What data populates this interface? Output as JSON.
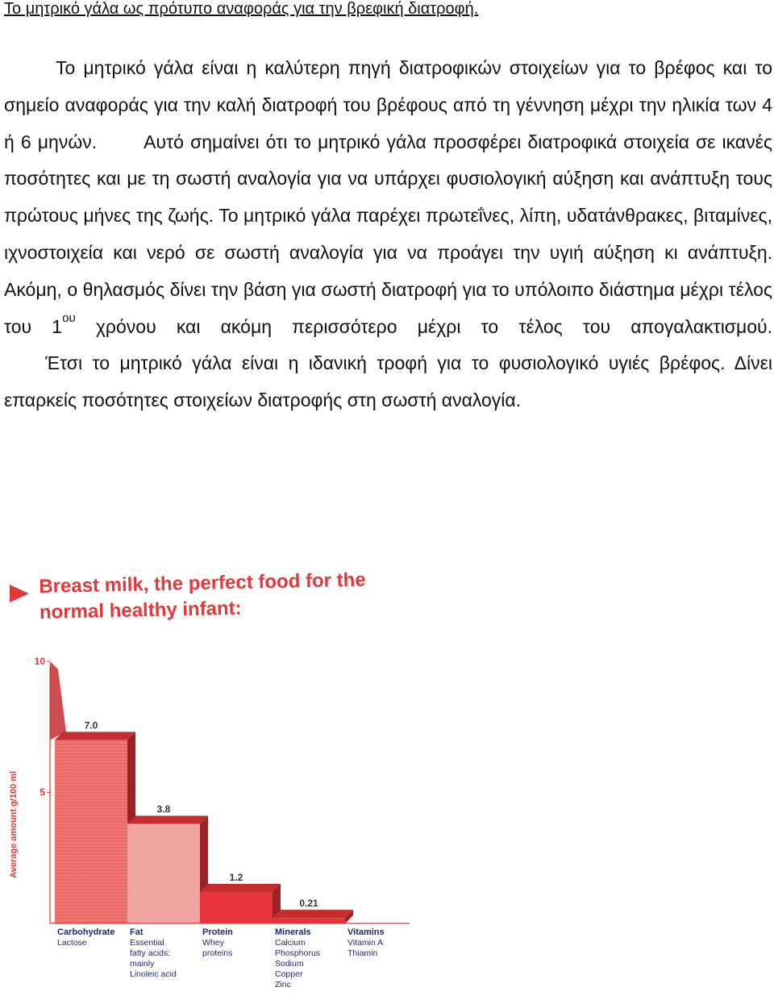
{
  "document": {
    "title": "Το μητρικό γάλα ως πρότυπο αναφοράς για την βρεφική διατροφή.",
    "p1": {
      "a": "Το μητρικό γάλα είναι η καλύτερη πηγή διατροφικών στοιχείων για το βρέφος και το σημείο αναφοράς για την καλή διατροφή του βρέφους από τη γέννηση μέχρι την ηλικία των 4 ή 6 μηνών.",
      "b": "Αυτό σημαίνει ότι το μητρικό γάλα προσφέρει διατροφικά στοιχεία σε ικανές ποσότητες και με τη σωστή αναλογία για να υπάρχει φυσιολογική αύξηση και ανάπτυξη τους πρώτους μήνες της ζωής. Το μητρικό γάλα παρέχει πρωτεΐνες, λίπη, υδατάνθρακες, βιταμίνες, ιχνοστοιχεία και νερό σε σωστή αναλογία για να προάγει την υγιή αύξηση κι ανάπτυξη. Ακόμη, ο θηλασμός δίνει την βάση για σωστή διατροφή για το υπόλοιπο διάστημα μέχρι τέλος του 1",
      "sup": "ου",
      "c": "χρόνου και ακόμη περισσότερο μέχρι το τέλος του απογαλακτισμού."
    },
    "p2": "Έτσι το μητρικό γάλα είναι η ιδανική τροφή για το φυσιολογικό υγιές βρέφος. Δίνει επαρκείς ποσότητες στοιχείων διατροφής στη σωστή αναλογία."
  },
  "chart_data": {
    "type": "bar",
    "title": "Breast milk, the perfect food for the normal healthy infant:",
    "title_lines": [
      "Breast milk, the perfect food for the",
      "normal healthy infant:"
    ],
    "ylabel": "Average amount g/100 ml",
    "ylim": [
      0,
      10
    ],
    "yticks": [
      "10",
      "5"
    ],
    "categories": [
      {
        "name": "Carbohydrate",
        "details": [
          "Lactose"
        ]
      },
      {
        "name": "Fat",
        "details": [
          "Essential",
          "fatty acids:",
          "mainly",
          "Linoleic acid"
        ]
      },
      {
        "name": "Protein",
        "details": [
          "Whey",
          "proteins"
        ]
      },
      {
        "name": "Minerals",
        "details": [
          "Calcium",
          "Phosphorus",
          "Sodium",
          "Copper",
          "Zinc"
        ]
      },
      {
        "name": "Vitamins",
        "details": [
          "Vitamin A",
          "Thiamin"
        ]
      }
    ],
    "values": [
      7.0,
      3.8,
      1.2,
      0.21,
      null
    ],
    "value_labels": [
      "7.0",
      "3.8",
      "1.2",
      "0.21",
      ""
    ],
    "colors": {
      "front": "#e8353a",
      "front_light": "#f0a5a2",
      "top": "#c42e30",
      "text": "#e2383a",
      "axis": "#e2383a"
    }
  }
}
